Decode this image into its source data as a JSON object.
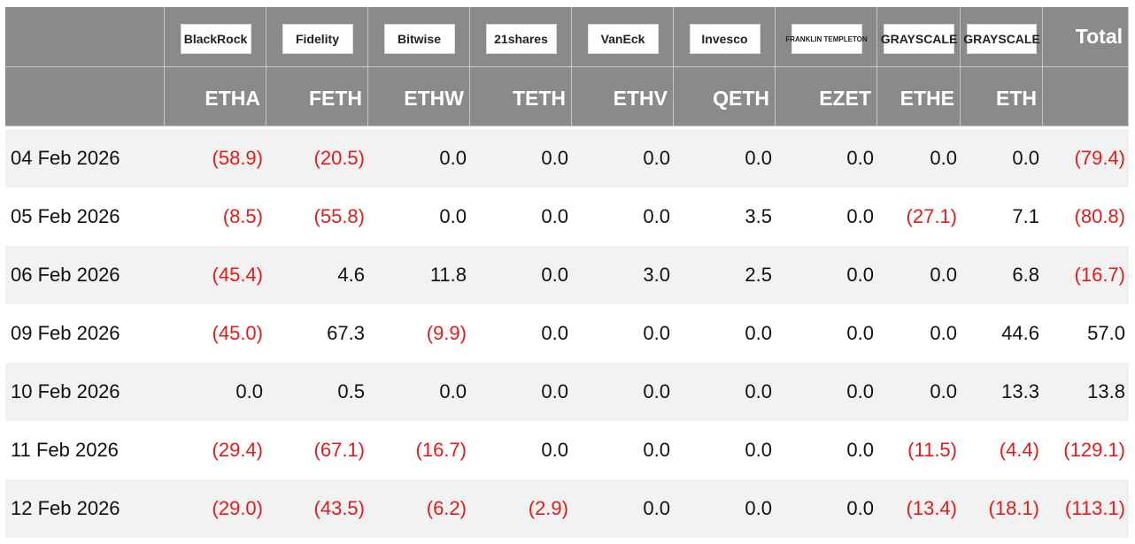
{
  "header": {
    "logos": [
      "BlackRock",
      "Fidelity",
      "Bitwise",
      "21shares",
      "VanEck",
      "Invesco",
      "FRANKLIN TEMPLETON",
      "GRAYSCALE",
      "GRAYSCALE"
    ],
    "total": "Total",
    "tickers": [
      "ETHA",
      "FETH",
      "ETHW",
      "TETH",
      "ETHV",
      "QETH",
      "EZET",
      "ETHE",
      "ETH"
    ]
  },
  "table": {
    "rows": [
      {
        "date": "04 Feb 2026",
        "values": [
          "(58.9)",
          "(20.5)",
          "0.0",
          "0.0",
          "0.0",
          "0.0",
          "0.0",
          "0.0",
          "0.0",
          "(79.4)"
        ]
      },
      {
        "date": "05 Feb 2026",
        "values": [
          "(8.5)",
          "(55.8)",
          "0.0",
          "0.0",
          "0.0",
          "3.5",
          "0.0",
          "(27.1)",
          "7.1",
          "(80.8)"
        ]
      },
      {
        "date": "06 Feb 2026",
        "values": [
          "(45.4)",
          "4.6",
          "11.8",
          "0.0",
          "3.0",
          "2.5",
          "0.0",
          "0.0",
          "6.8",
          "(16.7)"
        ]
      },
      {
        "date": "09 Feb 2026",
        "values": [
          "(45.0)",
          "67.3",
          "(9.9)",
          "0.0",
          "0.0",
          "0.0",
          "0.0",
          "0.0",
          "44.6",
          "57.0"
        ]
      },
      {
        "date": "10 Feb 2026",
        "values": [
          "0.0",
          "0.5",
          "0.0",
          "0.0",
          "0.0",
          "0.0",
          "0.0",
          "0.0",
          "13.3",
          "13.8"
        ]
      },
      {
        "date": "11 Feb 2026",
        "values": [
          "(29.4)",
          "(67.1)",
          "(16.7)",
          "0.0",
          "0.0",
          "0.0",
          "0.0",
          "(11.5)",
          "(4.4)",
          "(129.1)"
        ]
      },
      {
        "date": "12 Feb 2026",
        "values": [
          "(29.0)",
          "(43.5)",
          "(6.2)",
          "(2.9)",
          "0.0",
          "0.0",
          "0.0",
          "(13.4)",
          "(18.1)",
          "(113.1)"
        ]
      }
    ]
  }
}
